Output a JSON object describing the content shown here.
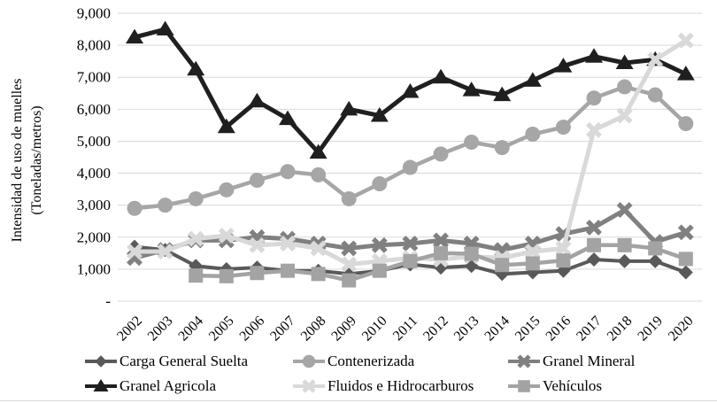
{
  "axis": {
    "y_title_line1": "Intensidad de uso de muelles",
    "y_title_line2": "(Toneladas/metros)"
  },
  "chart_data": {
    "type": "line",
    "categories": [
      "2002",
      "2003",
      "2004",
      "2005",
      "2006",
      "2007",
      "2008",
      "2009",
      "2010",
      "2011",
      "2012",
      "2013",
      "2014",
      "2015",
      "2016",
      "2017",
      "2018",
      "2019",
      "2020"
    ],
    "y_tick_labels": [
      "-",
      "1,000",
      "2,000",
      "3,000",
      "4,000",
      "5,000",
      "6,000",
      "7,000",
      "8,000",
      "9,000"
    ],
    "ylim": [
      0,
      9000
    ],
    "grid": true,
    "grid_color": "#d9d9d9",
    "legend_position": "bottom",
    "xlabel": "",
    "ylabel": "Intensidad de uso de muelles (Toneladas/metros)",
    "series": [
      {
        "name": "Carga General Suelta",
        "marker": "diamond",
        "color": "#595959",
        "values": [
          1700,
          1600,
          1100,
          1000,
          1050,
          950,
          950,
          850,
          950,
          1150,
          1050,
          1100,
          850,
          900,
          950,
          1300,
          1250,
          1250,
          900
        ]
      },
      {
        "name": "Contenerizada",
        "marker": "circle",
        "color": "#a6a6a6",
        "values": [
          2900,
          3000,
          3200,
          3480,
          3780,
          4050,
          3950,
          3200,
          3670,
          4180,
          4600,
          4970,
          4800,
          5220,
          5440,
          6350,
          6700,
          6450,
          5550
        ]
      },
      {
        "name": "Granel Mineral",
        "marker": "x",
        "color": "#808080",
        "values": [
          1350,
          1600,
          1900,
          1900,
          2000,
          1950,
          1800,
          1650,
          1750,
          1800,
          1900,
          1800,
          1600,
          1800,
          2100,
          2300,
          2850,
          1850,
          2150
        ]
      },
      {
        "name": "Granel Agricola",
        "marker": "triangle",
        "color": "#1f1f1f",
        "values": [
          8250,
          8500,
          7250,
          5450,
          6250,
          5700,
          4650,
          6000,
          5800,
          6550,
          7000,
          6600,
          6450,
          6900,
          7350,
          7650,
          7450,
          7550,
          7100
        ]
      },
      {
        "name": "Fluidos e Hidrocarburos",
        "marker": "x",
        "color": "#d9d9d9",
        "values": [
          1550,
          1550,
          1950,
          2050,
          1750,
          1800,
          1650,
          1150,
          1250,
          1350,
          1300,
          1400,
          1350,
          1550,
          1650,
          5350,
          5800,
          7550,
          8150
        ]
      },
      {
        "name": "Vehículos",
        "marker": "square",
        "color": "#a3a3a3",
        "values": [
          null,
          null,
          800,
          780,
          880,
          950,
          850,
          650,
          950,
          1250,
          1500,
          1480,
          1130,
          1180,
          1270,
          1750,
          1750,
          1650,
          1320
        ]
      }
    ]
  }
}
